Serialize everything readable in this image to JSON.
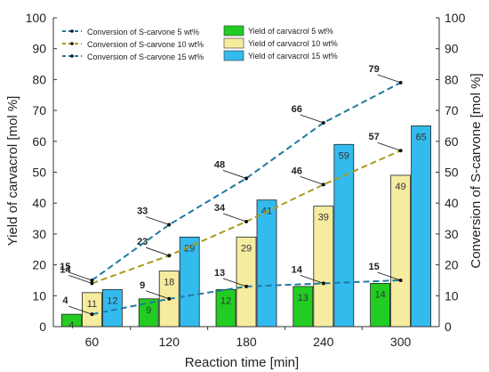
{
  "chart_data": {
    "type": "bar",
    "title": "",
    "xlabel": "Reaction time [min]",
    "ylabel_left": "Yield of carvacrol [mol %]",
    "ylabel_right": "Conversion of S-carvone [mol %]",
    "ylim_left": [
      0,
      100
    ],
    "ylim_right": [
      0,
      100
    ],
    "ytick_step": 10,
    "grid": false,
    "legend_position": "top",
    "categories": [
      "60",
      "120",
      "180",
      "240",
      "300"
    ],
    "bar_series": [
      {
        "name": "Yield of carvacrol 5 wt%",
        "values": [
          4,
          9,
          12,
          13,
          14
        ],
        "color": "#22cc22"
      },
      {
        "name": "Yield of carvacrol 10 wt%",
        "values": [
          11,
          18,
          29,
          39,
          49
        ],
        "color": "#f5eca0"
      },
      {
        "name": "Yield of carvacrol 15 wt%",
        "values": [
          12,
          29,
          41,
          59,
          65
        ],
        "color": "#33bbee"
      }
    ],
    "line_series": [
      {
        "name": "Conversion of S-carvone 5 wt%",
        "values": [
          4,
          9,
          13,
          14,
          15
        ],
        "color": "#1f7aa0"
      },
      {
        "name": "Conversion of S-carvone 10 wt%",
        "values": [
          14,
          23,
          34,
          46,
          57
        ],
        "color": "#a89a1e"
      },
      {
        "name": "Conversion of S-carvone 15 wt%",
        "values": [
          15,
          33,
          48,
          66,
          79
        ],
        "color": "#1f7aa0"
      }
    ]
  }
}
